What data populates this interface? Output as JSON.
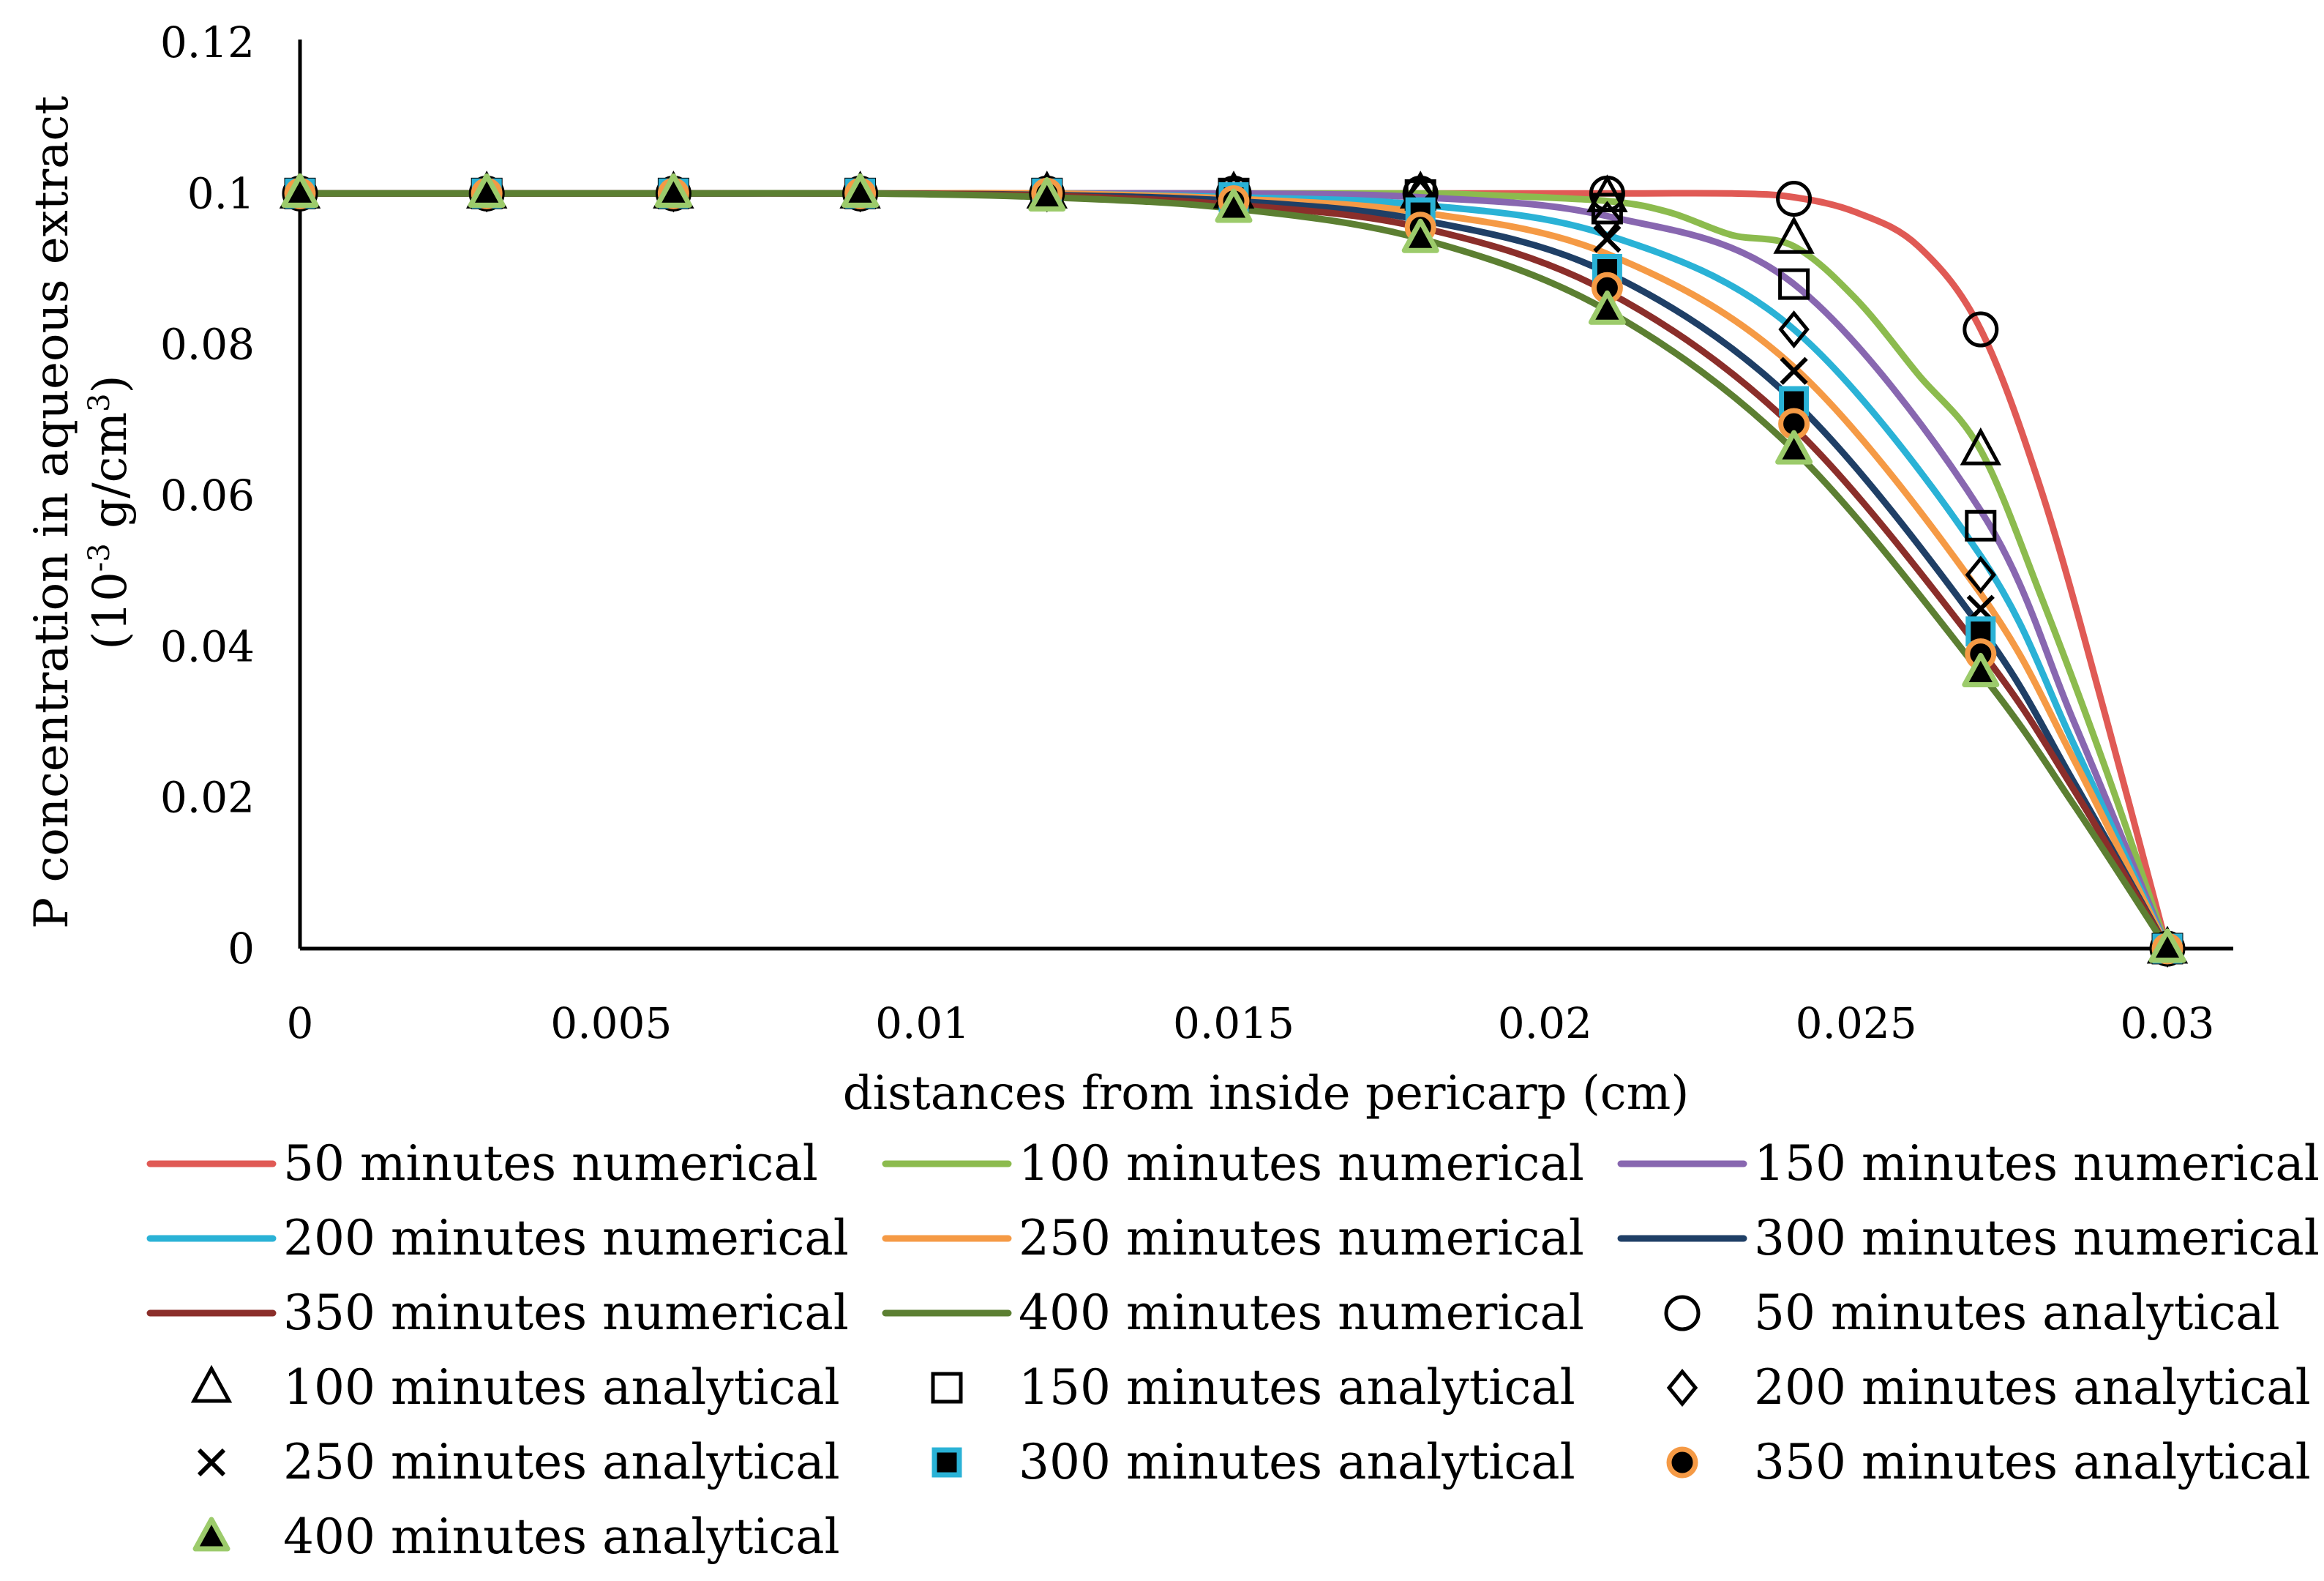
{
  "chart_data": {
    "type": "line",
    "title": "",
    "xlabel": "distances from inside pericarp (cm)",
    "ylabel_line1": "P concentration in aqueous extract",
    "ylabel_line2_prefix": "(10",
    "ylabel_line2_exp": "-3",
    "ylabel_line2_mid": " g/cm",
    "ylabel_line2_exp2": "3",
    "ylabel_line2_suffix": ")",
    "xlim": [
      0,
      0.031
    ],
    "ylim": [
      0,
      0.12
    ],
    "x_ticks": [
      0,
      0.005,
      0.01,
      0.015,
      0.02,
      0.025,
      0.03
    ],
    "x_tick_labels": [
      "0",
      "0.005",
      "0.01",
      "0.015",
      "0.02",
      "0.025",
      "0.03"
    ],
    "y_ticks": [
      0,
      0.02,
      0.04,
      0.06,
      0.08,
      0.1,
      0.12
    ],
    "y_tick_labels": [
      "0",
      "0.02",
      "0.04",
      "0.06",
      "0.08",
      "0.1",
      "0.12"
    ],
    "grid": false,
    "legend_position": "bottom",
    "x": [
      0,
      0.003,
      0.006,
      0.009,
      0.012,
      0.015,
      0.018,
      0.021,
      0.024,
      0.027,
      0.03
    ],
    "numerical_series": [
      {
        "name": "50 minutes numerical",
        "color": "#e05a55",
        "points": [
          [
            0,
            0.1
          ],
          [
            0.003,
            0.1
          ],
          [
            0.006,
            0.1
          ],
          [
            0.009,
            0.1
          ],
          [
            0.012,
            0.1
          ],
          [
            0.015,
            0.1
          ],
          [
            0.018,
            0.1
          ],
          [
            0.021,
            0.1
          ],
          [
            0.023,
            0.1
          ],
          [
            0.024,
            0.0995
          ],
          [
            0.025,
            0.0975
          ],
          [
            0.026,
            0.093
          ],
          [
            0.027,
            0.082
          ],
          [
            0.028,
            0.06
          ],
          [
            0.029,
            0.031
          ],
          [
            0.03,
            0.0
          ]
        ]
      },
      {
        "name": "100 minutes numerical",
        "color": "#8cbb4e",
        "points": [
          [
            0,
            0.1
          ],
          [
            0.003,
            0.1
          ],
          [
            0.006,
            0.1
          ],
          [
            0.009,
            0.1
          ],
          [
            0.012,
            0.1
          ],
          [
            0.015,
            0.1
          ],
          [
            0.018,
            0.1
          ],
          [
            0.019,
            0.0998
          ],
          [
            0.021,
            0.099
          ],
          [
            0.022,
            0.0975
          ],
          [
            0.023,
            0.0945
          ],
          [
            0.024,
            0.093
          ],
          [
            0.025,
            0.086
          ],
          [
            0.026,
            0.076
          ],
          [
            0.027,
            0.066
          ],
          [
            0.028,
            0.046
          ],
          [
            0.029,
            0.024
          ],
          [
            0.03,
            0.0
          ]
        ]
      },
      {
        "name": "150 minutes numerical",
        "color": "#8867b0",
        "points": [
          [
            0,
            0.1
          ],
          [
            0.003,
            0.1
          ],
          [
            0.006,
            0.1
          ],
          [
            0.009,
            0.1
          ],
          [
            0.012,
            0.1
          ],
          [
            0.015,
            0.1
          ],
          [
            0.018,
            0.0995
          ],
          [
            0.021,
            0.097
          ],
          [
            0.024,
            0.088
          ],
          [
            0.027,
            0.058
          ],
          [
            0.0285,
            0.03
          ],
          [
            0.03,
            0.0
          ]
        ]
      },
      {
        "name": "200 minutes numerical",
        "color": "#2ab2d6",
        "points": [
          [
            0,
            0.1
          ],
          [
            0.003,
            0.1
          ],
          [
            0.006,
            0.1
          ],
          [
            0.009,
            0.1
          ],
          [
            0.012,
            0.1
          ],
          [
            0.015,
            0.0995
          ],
          [
            0.018,
            0.0985
          ],
          [
            0.021,
            0.0945
          ],
          [
            0.024,
            0.082
          ],
          [
            0.027,
            0.052
          ],
          [
            0.0285,
            0.027
          ],
          [
            0.03,
            0.0
          ]
        ]
      },
      {
        "name": "250 minutes numerical",
        "color": "#f59a45",
        "points": [
          [
            0,
            0.1
          ],
          [
            0.003,
            0.1
          ],
          [
            0.006,
            0.1
          ],
          [
            0.009,
            0.1
          ],
          [
            0.012,
            0.1
          ],
          [
            0.015,
            0.0993
          ],
          [
            0.018,
            0.0975
          ],
          [
            0.021,
            0.092
          ],
          [
            0.024,
            0.077
          ],
          [
            0.027,
            0.047
          ],
          [
            0.0285,
            0.025
          ],
          [
            0.03,
            0.0
          ]
        ]
      },
      {
        "name": "300 minutes numerical",
        "color": "#1f3f66",
        "points": [
          [
            0,
            0.1
          ],
          [
            0.003,
            0.1
          ],
          [
            0.006,
            0.1
          ],
          [
            0.009,
            0.1
          ],
          [
            0.012,
            0.0998
          ],
          [
            0.015,
            0.099
          ],
          [
            0.018,
            0.0965
          ],
          [
            0.021,
            0.0895
          ],
          [
            0.024,
            0.0725
          ],
          [
            0.027,
            0.0425
          ],
          [
            0.0285,
            0.022
          ],
          [
            0.03,
            0.0
          ]
        ]
      },
      {
        "name": "350 minutes numerical",
        "color": "#8b2e2a",
        "points": [
          [
            0,
            0.1
          ],
          [
            0.003,
            0.1
          ],
          [
            0.006,
            0.1
          ],
          [
            0.009,
            0.1
          ],
          [
            0.012,
            0.0997
          ],
          [
            0.015,
            0.0985
          ],
          [
            0.018,
            0.0955
          ],
          [
            0.021,
            0.087
          ],
          [
            0.024,
            0.069
          ],
          [
            0.027,
            0.0395
          ],
          [
            0.0285,
            0.021
          ],
          [
            0.03,
            0.0
          ]
        ]
      },
      {
        "name": "400 minutes numerical",
        "color": "#5c7f32",
        "points": [
          [
            0,
            0.1
          ],
          [
            0.003,
            0.1
          ],
          [
            0.006,
            0.1
          ],
          [
            0.009,
            0.1
          ],
          [
            0.012,
            0.0995
          ],
          [
            0.015,
            0.098
          ],
          [
            0.018,
            0.094
          ],
          [
            0.021,
            0.0845
          ],
          [
            0.024,
            0.066
          ],
          [
            0.027,
            0.0365
          ],
          [
            0.0285,
            0.019
          ],
          [
            0.03,
            0.0
          ]
        ]
      }
    ],
    "analytical_series": [
      {
        "name": "50 minutes analytical",
        "marker": "circle-open",
        "values": [
          0.1,
          0.1,
          0.1,
          0.1,
          0.1,
          0.1,
          0.1,
          0.1,
          0.0993,
          0.082,
          0.0
        ]
      },
      {
        "name": "100 minutes analytical",
        "marker": "triangle-open",
        "values": [
          0.1,
          0.1,
          0.1,
          0.1,
          0.1,
          0.1,
          0.1,
          0.0995,
          0.094,
          0.066,
          0.0
        ]
      },
      {
        "name": "150 minutes analytical",
        "marker": "square-open",
        "values": [
          0.1,
          0.1,
          0.1,
          0.1,
          0.1,
          0.1,
          0.0998,
          0.098,
          0.088,
          0.056,
          0.0
        ]
      },
      {
        "name": "200 minutes analytical",
        "marker": "diamond-open",
        "values": [
          0.1,
          0.1,
          0.1,
          0.1,
          0.1,
          0.1,
          0.0995,
          0.0965,
          0.082,
          0.0495,
          0.0
        ]
      },
      {
        "name": "250 minutes analytical",
        "marker": "x",
        "values": [
          0.1,
          0.1,
          0.1,
          0.1,
          0.1,
          0.0995,
          0.0985,
          0.094,
          0.0765,
          0.045,
          0.0
        ]
      },
      {
        "name": "300 minutes analytical",
        "marker": "square-filled",
        "values": [
          0.1,
          0.1,
          0.1,
          0.1,
          0.1,
          0.0995,
          0.0975,
          0.09,
          0.0725,
          0.042,
          0.0
        ]
      },
      {
        "name": "350 minutes analytical",
        "marker": "circle-filled",
        "values": [
          0.1,
          0.1,
          0.1,
          0.1,
          0.1,
          0.099,
          0.0955,
          0.0875,
          0.0695,
          0.039,
          0.0
        ]
      },
      {
        "name": "400 minutes analytical",
        "marker": "triangle-filled",
        "values": [
          0.1,
          0.1,
          0.1,
          0.1,
          0.0995,
          0.098,
          0.094,
          0.0845,
          0.066,
          0.0365,
          0.0
        ]
      }
    ],
    "legend": [
      {
        "label": "50 minutes numerical",
        "kind": "line",
        "ref": 0
      },
      {
        "label": "100 minutes numerical",
        "kind": "line",
        "ref": 1
      },
      {
        "label": "150 minutes numerical",
        "kind": "line",
        "ref": 2
      },
      {
        "label": "200 minutes numerical",
        "kind": "line",
        "ref": 3
      },
      {
        "label": "250 minutes numerical",
        "kind": "line",
        "ref": 4
      },
      {
        "label": "300 minutes numerical",
        "kind": "line",
        "ref": 5
      },
      {
        "label": "350 minutes numerical",
        "kind": "line",
        "ref": 6
      },
      {
        "label": "400 minutes numerical",
        "kind": "line",
        "ref": 7
      },
      {
        "label": "50 minutes analytical",
        "kind": "marker",
        "ref": 0
      },
      {
        "label": "100 minutes analytical",
        "kind": "marker",
        "ref": 1
      },
      {
        "label": "150 minutes analytical",
        "kind": "marker",
        "ref": 2
      },
      {
        "label": "200 minutes analytical",
        "kind": "marker",
        "ref": 3
      },
      {
        "label": "250 minutes analytical",
        "kind": "marker",
        "ref": 4
      },
      {
        "label": "300 minutes analytical",
        "kind": "marker",
        "ref": 5
      },
      {
        "label": "350 minutes analytical",
        "kind": "marker",
        "ref": 6
      },
      {
        "label": "400 minutes analytical",
        "kind": "marker",
        "ref": 7
      }
    ],
    "marker_styles": {
      "square-filled": {
        "fill": "#000000",
        "stroke": "#2ab2d6"
      },
      "circle-filled": {
        "fill": "#000000",
        "stroke": "#f59a45"
      },
      "triangle-filled": {
        "fill": "#000000",
        "stroke": "#9ccb6b"
      }
    }
  }
}
